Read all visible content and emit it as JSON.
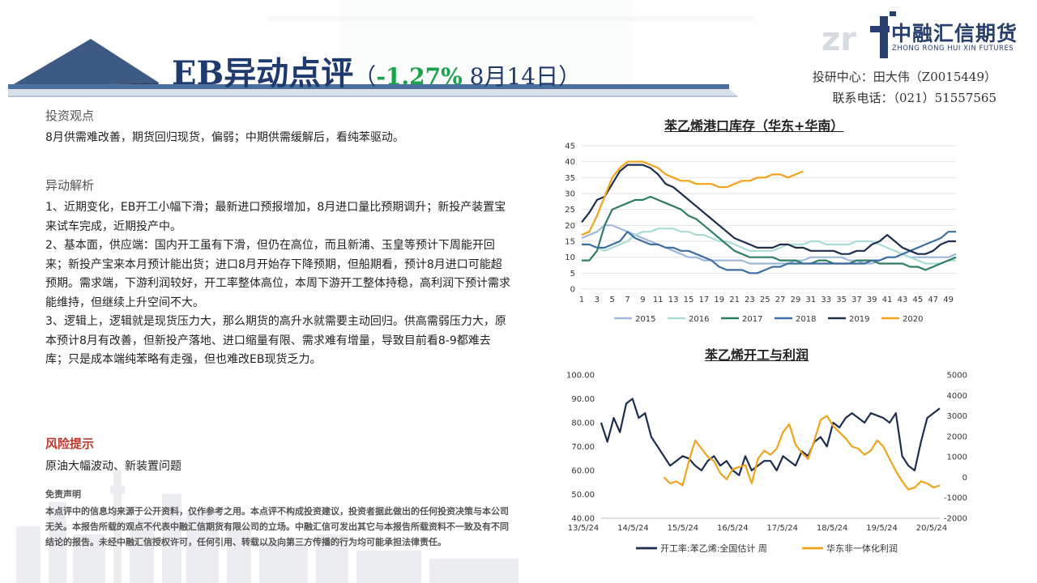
{
  "header": {
    "title_main": "EB异动点评",
    "title_paren_open": "（",
    "title_pct": "-1.27%",
    "title_date": " 8月14日）",
    "analyst_line": "投研中心：田大伟（Z0015449）",
    "phone_line": "联系电话：（021）51557565"
  },
  "logo": {
    "letters": "zr",
    "cn": "中融汇信期货",
    "en": "ZHONG RONG HUI XIN FUTURES",
    "color": "#27406e"
  },
  "left": {
    "view_title": "投资观点",
    "view_text": "8月供需难改善，期货回归现货，偏弱；中期供需缓解后，看纯苯驱动。",
    "analysis_title": "异动解析",
    "analysis_items": [
      "1、近期变化，EB开工小幅下滑；最新进口预报增加，8月进口量比预期调升；新投产装置宝来试车完成，近期投产中。",
      "2、基本面，供应端：国内开工虽有下滑，但仍在高位，而且新浦、玉皇等预计下周能开回来；新投产宝来本月预计能出货；进口8月开始存下降预期，但船期看，预计8月进口可能超预期。需求端，下游利润较好，开工率整体高位，本周下游开工整体持稳，高利润下预计需求能维持，但继续上升空间不大。",
      "3、逻辑上，逻辑就是现货压力大，那么期货的高升水就需要主动回归。供高需弱压力大，原本预计8月有改善，但新投产落地、进口缩量有限、需求难有增量，导致目前看8-9都难去库；只是成本端纯苯略有走强，但也难改EB现货乏力。"
    ],
    "risk_title": "风险提示",
    "risk_text": "原油大幅波动、新装置问题",
    "disclaimer_title": "免责声明",
    "disclaimer_text": "本点评中的信息均来源于公开资料，仅作参考之用。本点评不构成投资建议，投资者据此做出的任何投资决策与本公司无关。本报告所载的观点不代表中融汇信期货有限公司的立场。中融汇信可发出其它与本报告所载资料不一致及有不同结论的报告。未经中融汇信授权许可，任何引用、转载以及向第三方传播的行为均可能承担法律责任。"
  },
  "chart_data": [
    {
      "type": "line",
      "title": "苯乙烯港口库存（华东+华南）",
      "x": [
        1,
        2,
        3,
        4,
        5,
        6,
        7,
        8,
        9,
        10,
        11,
        12,
        13,
        14,
        15,
        16,
        17,
        18,
        19,
        20,
        21,
        22,
        23,
        24,
        25,
        26,
        27,
        28,
        29,
        30,
        31,
        32,
        33,
        34,
        35,
        36,
        37,
        38,
        39,
        40,
        41,
        42,
        43,
        44,
        45,
        46,
        47,
        48,
        49,
        50
      ],
      "xticks": [
        1,
        3,
        5,
        7,
        9,
        11,
        13,
        15,
        17,
        19,
        21,
        23,
        25,
        27,
        29,
        31,
        33,
        35,
        37,
        39,
        41,
        43,
        45,
        47,
        49
      ],
      "ylim": [
        0,
        45
      ],
      "yticks": [
        0,
        5,
        10,
        15,
        20,
        25,
        30,
        35,
        40,
        45
      ],
      "legend": "bottom",
      "series": [
        {
          "name": "2015",
          "color": "#9db8dc",
          "values": [
            16,
            17,
            18,
            20,
            20,
            19,
            18,
            17,
            16,
            15,
            14,
            13,
            12,
            11,
            10,
            10,
            9,
            9,
            9,
            9,
            9,
            9,
            8,
            8,
            8,
            8,
            8,
            8,
            9,
            9,
            10,
            10,
            10,
            10,
            10,
            9,
            9,
            8,
            8,
            9,
            10,
            10,
            11,
            10,
            10,
            10,
            10,
            10,
            10,
            11
          ]
        },
        {
          "name": "2016",
          "color": "#a8dcd4",
          "values": [
            14,
            14,
            13,
            12,
            13,
            14,
            15,
            17,
            18,
            18,
            19,
            19,
            19,
            18,
            18,
            17,
            17,
            16,
            15,
            15,
            14,
            13,
            12,
            12,
            12,
            12,
            13,
            14,
            14,
            14,
            15,
            15,
            14,
            14,
            14,
            14,
            15,
            15,
            15,
            14,
            13,
            12,
            11,
            10,
            9,
            8,
            8,
            8,
            9,
            9
          ]
        },
        {
          "name": "2017",
          "color": "#2e7d66",
          "values": [
            9,
            9,
            12,
            20,
            25,
            26,
            27,
            28,
            28,
            29,
            28,
            27,
            26,
            25,
            23,
            22,
            20,
            18,
            16,
            14,
            12,
            11,
            10,
            10,
            10,
            10,
            9,
            9,
            9,
            8,
            8,
            9,
            9,
            8,
            8,
            8,
            9,
            9,
            9,
            8,
            8,
            8,
            8,
            7,
            7,
            6,
            7,
            8,
            9,
            10
          ]
        },
        {
          "name": "2018",
          "color": "#3f6fa0",
          "values": [
            14,
            14,
            13,
            13,
            14,
            15,
            18,
            16,
            15,
            14,
            14,
            13,
            13,
            12,
            12,
            11,
            10,
            9,
            7,
            6,
            6,
            6,
            5,
            5,
            6,
            7,
            7,
            8,
            8,
            8,
            8,
            8,
            8,
            8,
            8,
            8,
            8,
            8,
            9,
            9,
            10,
            10,
            11,
            12,
            13,
            14,
            15,
            16,
            18,
            18
          ]
        },
        {
          "name": "2019",
          "color": "#1e2f4e",
          "values": [
            21,
            24,
            28,
            29,
            33,
            37,
            39,
            39,
            39,
            38,
            36,
            33,
            32,
            30,
            28,
            26,
            24,
            22,
            20,
            18,
            16,
            15,
            14,
            13,
            13,
            13,
            14,
            14,
            13,
            13,
            12,
            12,
            12,
            12,
            11,
            11,
            12,
            12,
            14,
            15,
            17,
            15,
            13,
            12,
            11,
            11,
            12,
            14,
            15,
            15
          ]
        },
        {
          "name": "2020",
          "color": "#f2a31b",
          "values": [
            17,
            18,
            23,
            29,
            35,
            38,
            40,
            40,
            40,
            39,
            38,
            36,
            35,
            34,
            34,
            33,
            33,
            33,
            32,
            32,
            33,
            34,
            34,
            35,
            35,
            36,
            36,
            35,
            36,
            37,
            null,
            null,
            null,
            null,
            null,
            null,
            null,
            null,
            null,
            null,
            null,
            null,
            null,
            null,
            null,
            null,
            null,
            null,
            null,
            null
          ]
        }
      ]
    },
    {
      "type": "line",
      "title": "苯乙烯开工与利润",
      "xticks": [
        "13/5/24",
        "14/5/24",
        "15/5/24",
        "16/5/24",
        "17/5/24",
        "18/5/24",
        "19/5/24",
        "20/5/24"
      ],
      "ylim": [
        40,
        100
      ],
      "yticks": [
        "40.00",
        "50.00",
        "60.00",
        "70.00",
        "80.00",
        "90.00",
        "100.00"
      ],
      "y2lim": [
        -2000,
        5000
      ],
      "y2ticks": [
        -2000,
        -1000,
        0,
        1000,
        2000,
        3000,
        4000,
        5000
      ],
      "legend": "bottom",
      "series": [
        {
          "name": "开工率:苯乙烯:全国估计 周",
          "axis": "left",
          "color": "#1e2f4e",
          "values": [
            80,
            72,
            82,
            76,
            88,
            90,
            82,
            84,
            74,
            70,
            66,
            62,
            64,
            66,
            65,
            62,
            60,
            64,
            66,
            62,
            64,
            60,
            58,
            66,
            60,
            62,
            64,
            64,
            60,
            66,
            64,
            62,
            68,
            66,
            72,
            74,
            70,
            80,
            78,
            82,
            84,
            82,
            80,
            84,
            83,
            82,
            80,
            84,
            66,
            62,
            60,
            72,
            82,
            84,
            86
          ]
        },
        {
          "name": "华东非一体化利润",
          "axis": "right",
          "color": "#f2a31b",
          "values": [
            null,
            null,
            null,
            null,
            null,
            null,
            null,
            null,
            null,
            null,
            0,
            -300,
            -200,
            -400,
            800,
            1800,
            1400,
            1000,
            800,
            200,
            -100,
            400,
            500,
            600,
            -300,
            900,
            1300,
            1100,
            1400,
            2200,
            2600,
            1600,
            1200,
            900,
            1800,
            2800,
            3000,
            2500,
            2200,
            1900,
            1500,
            1400,
            1100,
            1300,
            1800,
            1500,
            900,
            300,
            -200,
            -600,
            -500,
            -200,
            -300,
            -500,
            -400
          ]
        }
      ]
    }
  ]
}
